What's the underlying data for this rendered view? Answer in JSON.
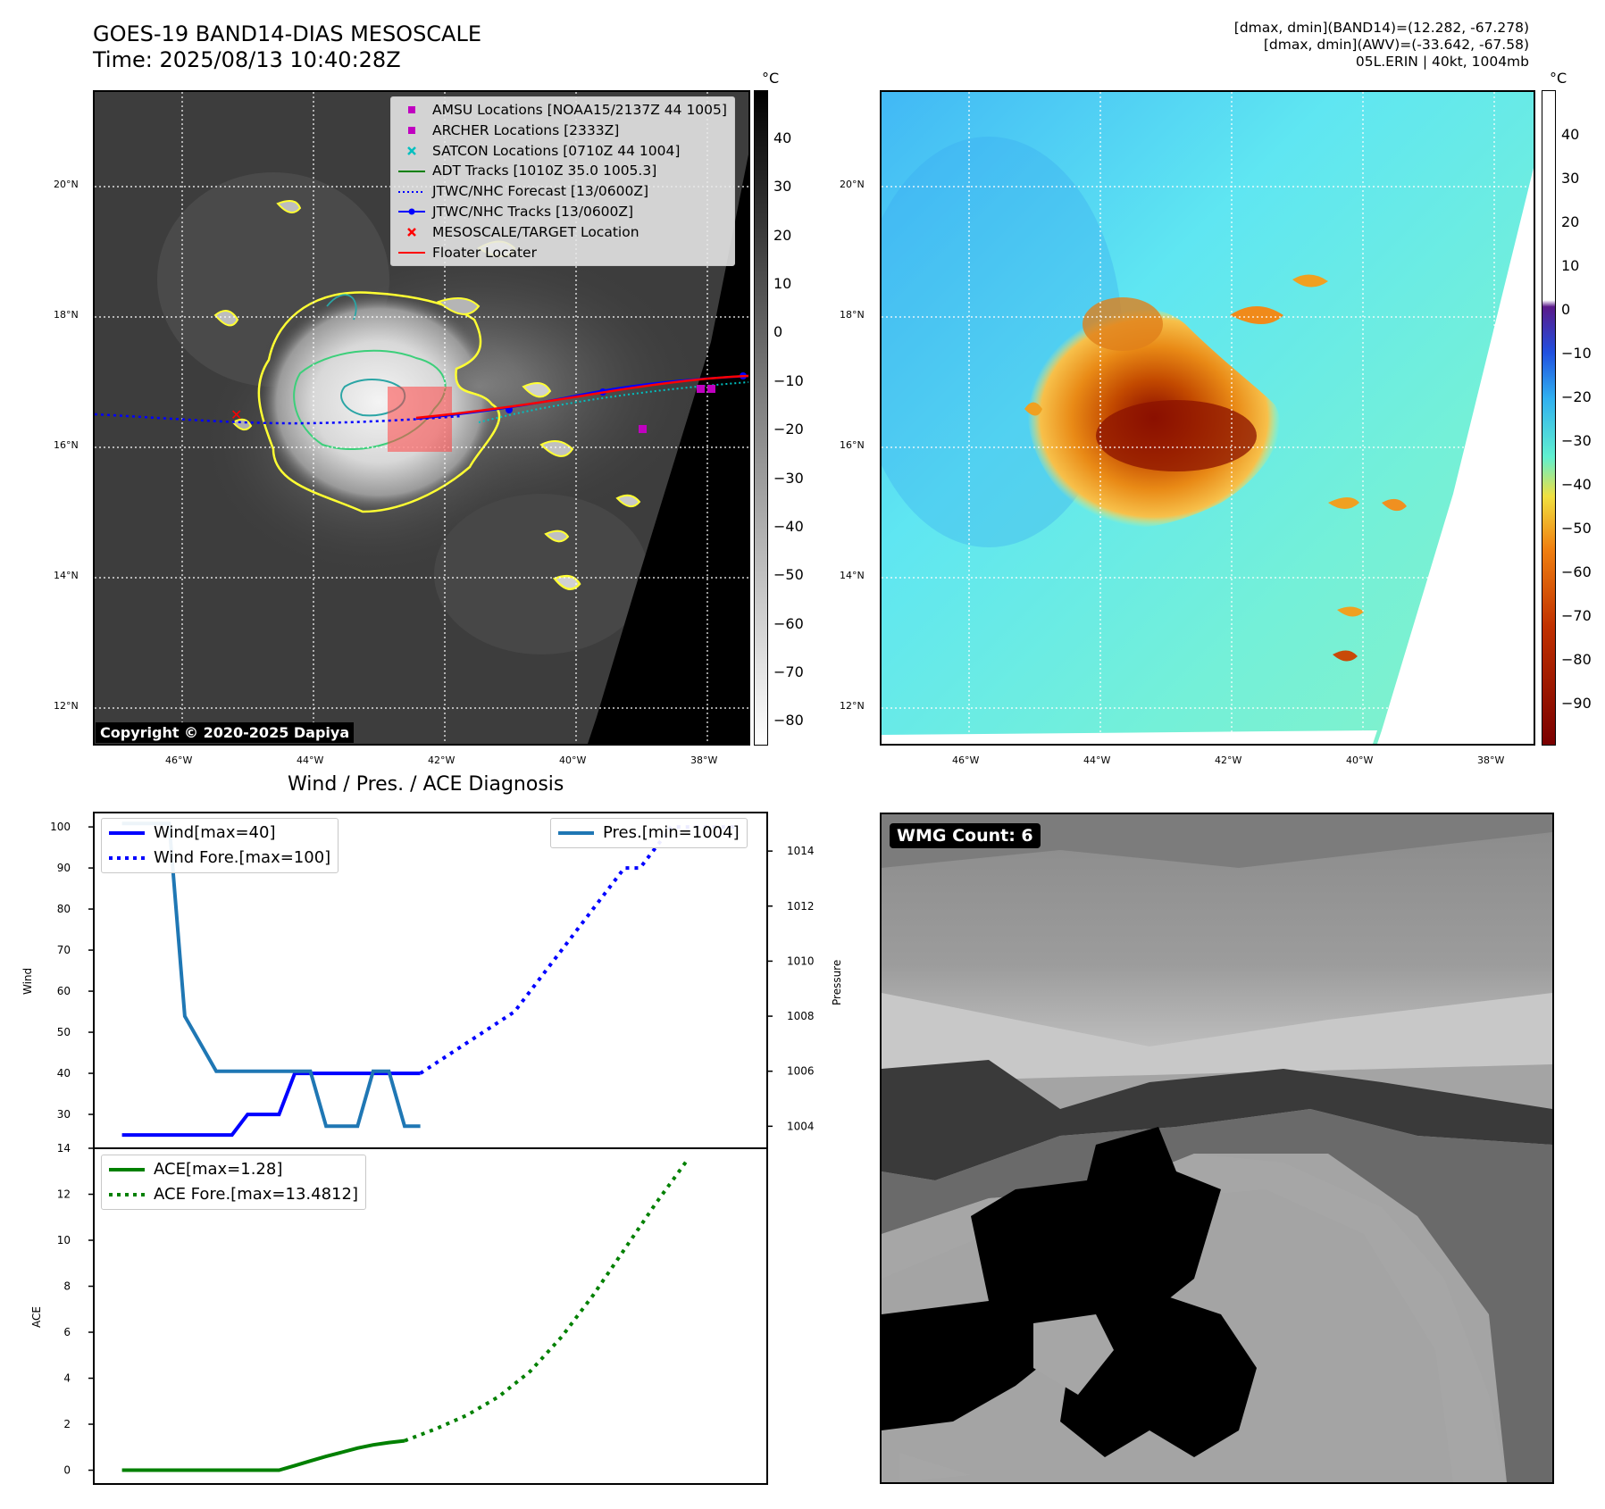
{
  "header": {
    "title_line1": "GOES-19 BAND14-DIAS MESOSCALE",
    "title_line2": "Time: 2025/08/13 10:40:28Z",
    "meta_line1": "[dmax, dmin](BAND14)=(12.282, -67.278)",
    "meta_line2": "[dmax, dmin](AWV)=(-33.642, -67.58)",
    "meta_line3": "05L.ERIN | 40kt, 1004mb"
  },
  "map_axes": {
    "lat_labels": [
      "20°N",
      "18°N",
      "16°N",
      "14°N",
      "12°N"
    ],
    "lon_labels": [
      "46°W",
      "44°W",
      "42°W",
      "40°W",
      "38°W"
    ]
  },
  "ir_colorbar": {
    "unit": "°C",
    "ticks": [
      "40",
      "30",
      "20",
      "10",
      "0",
      "−10",
      "−20",
      "−30",
      "−40",
      "−50",
      "−60",
      "−70",
      "−80"
    ]
  },
  "awv_colorbar": {
    "unit": "°C",
    "ticks": [
      "40",
      "30",
      "20",
      "10",
      "0",
      "−10",
      "−20",
      "−30",
      "−40",
      "−50",
      "−60",
      "−70",
      "−80",
      "−90"
    ]
  },
  "map_legend": [
    {
      "label": "AMSU Locations [NOAA15/2137Z 44 1005]",
      "symbol": "square",
      "color": "#c000c0"
    },
    {
      "label": "ARCHER Locations [2333Z]",
      "symbol": "square",
      "color": "#c000c0"
    },
    {
      "label": "SATCON Locations [0710Z 44 1004]",
      "symbol": "x",
      "color": "#00c0c0"
    },
    {
      "label": "ADT Tracks [1010Z 35.0 1005.3]",
      "symbol": "line",
      "color": "#008000"
    },
    {
      "label": "JTWC/NHC Forecast [13/0600Z]",
      "symbol": "dotted",
      "color": "#0000ff"
    },
    {
      "label": "JTWC/NHC Tracks [13/0600Z]",
      "symbol": "line-dot",
      "color": "#0000ff"
    },
    {
      "label": "MESOSCALE/TARGET Location",
      "symbol": "x",
      "color": "#ff0000"
    },
    {
      "label": "Floater Locater",
      "symbol": "line",
      "color": "#ff0000"
    }
  ],
  "copyright": "Copyright © 2020-2025 Dapiya",
  "wmg_label": "WMG Count: 6",
  "diagnosis": {
    "title": "Wind / Pres. / ACE Diagnosis",
    "wind_ylabel": "Wind",
    "pres_ylabel": "Pressure",
    "ace_ylabel": "ACE",
    "legend_wind": "Wind[max=40]",
    "legend_wind_fore": "Wind Fore.[max=100]",
    "legend_pres": "Pres.[min=1004]",
    "legend_ace": "ACE[max=1.28]",
    "legend_ace_fore": "ACE Fore.[max=13.4812]"
  },
  "chart_data": [
    {
      "type": "line",
      "name": "wind-pressure",
      "x": [
        0,
        1,
        2,
        3,
        4,
        5,
        6,
        7,
        8,
        9,
        10,
        11,
        12,
        13,
        14,
        15,
        16,
        17,
        18,
        19,
        20,
        21,
        22,
        23,
        24,
        25,
        26,
        27,
        28,
        29,
        30,
        31,
        32,
        33,
        34,
        35,
        36,
        37,
        38,
        39
      ],
      "series": [
        {
          "name": "Wind[max=40]",
          "axis": "left",
          "style": "solid",
          "color": "#0000ff",
          "points": [
            [
              0,
              25
            ],
            [
              1,
              25
            ],
            [
              2,
              25
            ],
            [
              3,
              25
            ],
            [
              4,
              25
            ],
            [
              5,
              25
            ],
            [
              6,
              25
            ],
            [
              7,
              25
            ],
            [
              8,
              30
            ],
            [
              9,
              30
            ],
            [
              10,
              30
            ],
            [
              11,
              40
            ],
            [
              12,
              40
            ],
            [
              13,
              40
            ],
            [
              14,
              40
            ],
            [
              15,
              40
            ],
            [
              16,
              40
            ],
            [
              17,
              40
            ],
            [
              18,
              40
            ],
            [
              19,
              40
            ]
          ]
        },
        {
          "name": "Wind Fore.[max=100]",
          "axis": "left",
          "style": "dotted",
          "color": "#0000ff",
          "points": [
            [
              19,
              40
            ],
            [
              21,
              45
            ],
            [
              23,
              50
            ],
            [
              25,
              55
            ],
            [
              26,
              60
            ],
            [
              27,
              65
            ],
            [
              28,
              70
            ],
            [
              29,
              75
            ],
            [
              30,
              80
            ],
            [
              31,
              85
            ],
            [
              32,
              90
            ],
            [
              33,
              90
            ],
            [
              34,
              95
            ],
            [
              35,
              100
            ],
            [
              36,
              100
            ],
            [
              37,
              100
            ],
            [
              38,
              100
            ],
            [
              39,
              100
            ]
          ]
        },
        {
          "name": "Pres.[min=1004]",
          "axis": "right",
          "style": "solid",
          "color": "#1f77b4",
          "points": [
            [
              0,
              1015
            ],
            [
              1,
              1015
            ],
            [
              2,
              1015
            ],
            [
              3,
              1015
            ],
            [
              4,
              1008
            ],
            [
              5,
              1007
            ],
            [
              6,
              1006
            ],
            [
              7,
              1006
            ],
            [
              8,
              1006
            ],
            [
              9,
              1006
            ],
            [
              10,
              1006
            ],
            [
              11,
              1006
            ],
            [
              12,
              1006
            ],
            [
              13,
              1004
            ],
            [
              14,
              1004
            ],
            [
              15,
              1004
            ],
            [
              16,
              1006
            ],
            [
              17,
              1006
            ],
            [
              18,
              1004
            ],
            [
              19,
              1004
            ]
          ]
        }
      ],
      "left_ticks": [
        30,
        40,
        50,
        60,
        70,
        80,
        90,
        100
      ],
      "right_ticks": [
        1004,
        1006,
        1008,
        1010,
        1012,
        1014
      ],
      "ylim_left": [
        21.75,
        103.5
      ],
      "ylim_right": [
        1003.2,
        1015.4
      ]
    },
    {
      "type": "line",
      "name": "ace",
      "series": [
        {
          "name": "ACE[max=1.28]",
          "style": "solid",
          "color": "#008000",
          "points": [
            [
              0,
              0
            ],
            [
              1,
              0
            ],
            [
              2,
              0
            ],
            [
              3,
              0
            ],
            [
              4,
              0
            ],
            [
              5,
              0
            ],
            [
              6,
              0
            ],
            [
              7,
              0
            ],
            [
              8,
              0
            ],
            [
              9,
              0
            ],
            [
              10,
              0
            ],
            [
              11,
              0.2
            ],
            [
              12,
              0.4
            ],
            [
              13,
              0.6
            ],
            [
              14,
              0.78
            ],
            [
              15,
              0.96
            ],
            [
              16,
              1.1
            ],
            [
              17,
              1.2
            ],
            [
              18,
              1.28
            ]
          ]
        },
        {
          "name": "ACE Fore.[max=13.4812]",
          "style": "dotted",
          "color": "#008000",
          "points": [
            [
              18,
              1.28
            ],
            [
              20,
              1.8
            ],
            [
              22,
              2.4
            ],
            [
              24,
              3.2
            ],
            [
              26,
              4.3
            ],
            [
              28,
              5.8
            ],
            [
              30,
              7.6
            ],
            [
              32,
              9.6
            ],
            [
              34,
              11.6
            ],
            [
              36,
              13.48
            ]
          ]
        }
      ],
      "y_ticks": [
        0,
        2,
        4,
        6,
        8,
        10,
        12,
        14
      ],
      "ylim": [
        -0.6,
        14
      ]
    }
  ]
}
